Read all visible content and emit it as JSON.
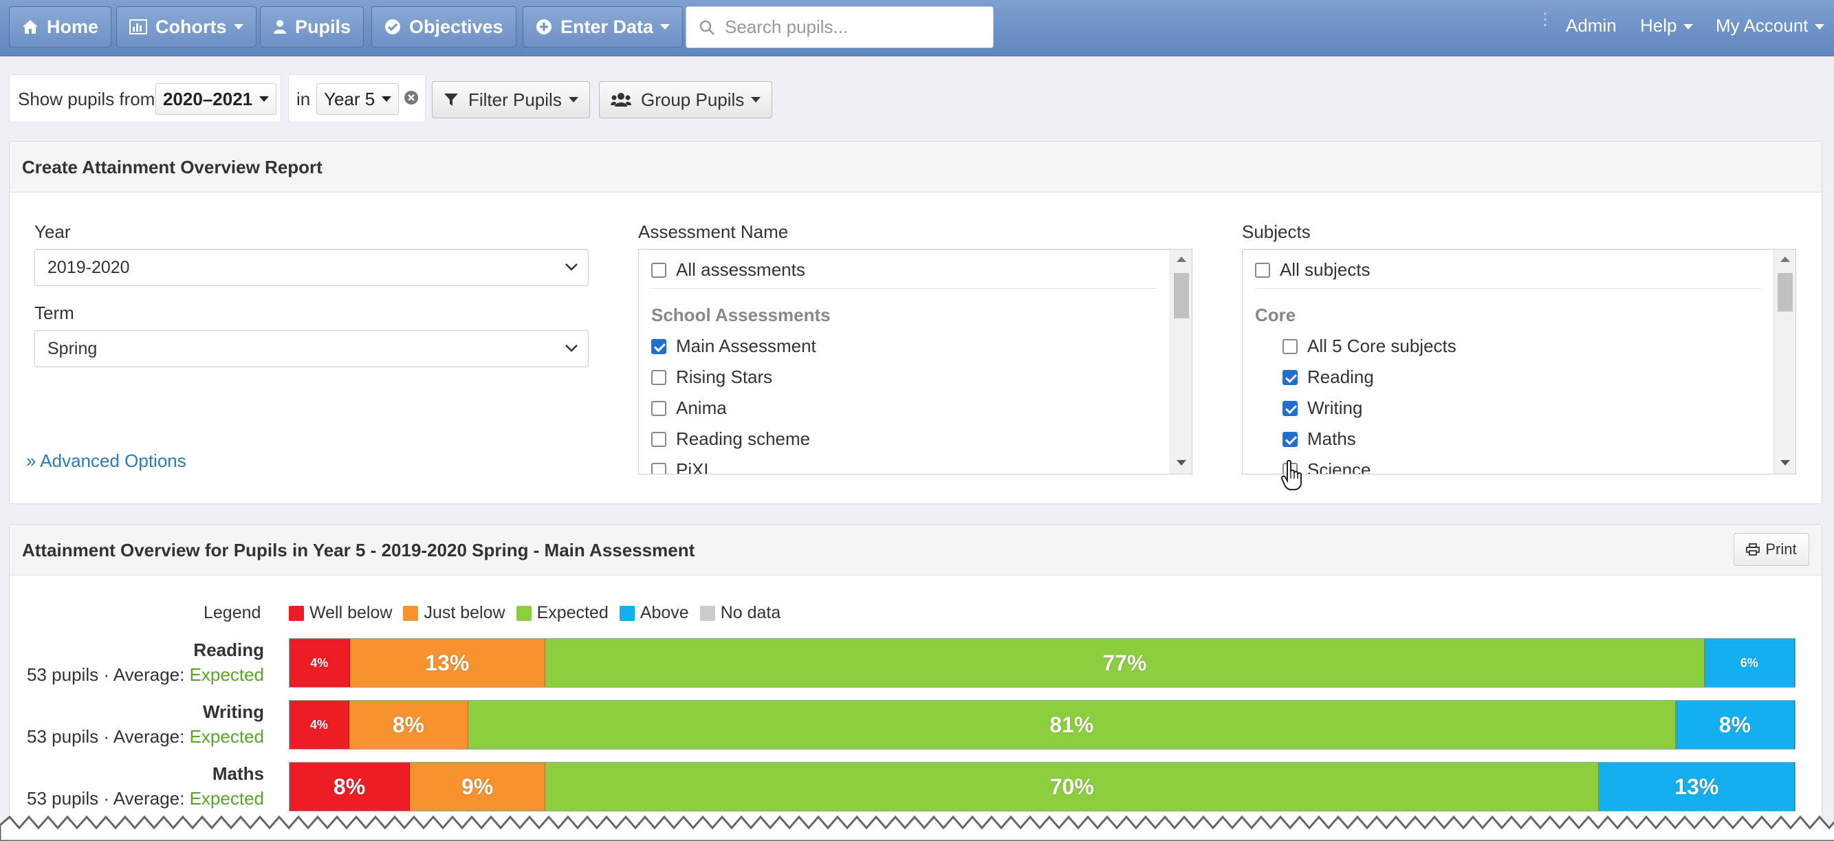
{
  "navbar": {
    "home": "Home",
    "cohorts": "Cohorts",
    "pupils": "Pupils",
    "objectives": "Objectives",
    "enter_data": "Enter Data",
    "search_placeholder": "Search pupils...",
    "admin": "Admin",
    "help": "Help",
    "my_account": "My Account"
  },
  "filters": {
    "show_from_label": "Show pupils from",
    "year_value": "2020–2021",
    "in_label": "in",
    "group_value": "Year 5",
    "filter_pupils": "Filter Pupils",
    "group_pupils": "Group Pupils"
  },
  "report_form": {
    "title": "Create Attainment Overview Report",
    "year_label": "Year",
    "year_value": "2019-2020",
    "term_label": "Term",
    "term_value": "Spring",
    "advanced_options": "Advanced Options",
    "assessment_label": "Assessment Name",
    "assessments": {
      "all": {
        "label": "All assessments",
        "checked": false
      },
      "group": "School Assessments",
      "items": [
        {
          "label": "Main Assessment",
          "checked": true
        },
        {
          "label": "Rising Stars",
          "checked": false
        },
        {
          "label": "Anima",
          "checked": false
        },
        {
          "label": "Reading scheme",
          "checked": false
        },
        {
          "label": "PiXL",
          "checked": false
        }
      ]
    },
    "subjects_label": "Subjects",
    "subjects": {
      "all": {
        "label": "All subjects",
        "checked": false
      },
      "group": "Core",
      "items": [
        {
          "label": "All 5 Core subjects",
          "checked": false
        },
        {
          "label": "Reading",
          "checked": true
        },
        {
          "label": "Writing",
          "checked": true
        },
        {
          "label": "Maths",
          "checked": true
        },
        {
          "label": "Science",
          "checked": false
        }
      ]
    }
  },
  "overview": {
    "title": "Attainment Overview for Pupils in Year 5 - 2019-2020 Spring - Main Assessment",
    "print": "Print",
    "legend_label": "Legend",
    "legend": [
      {
        "name": "Well below",
        "color": "#ee1c24"
      },
      {
        "name": "Just below",
        "color": "#f7932e"
      },
      {
        "name": "Expected",
        "color": "#8dce3e"
      },
      {
        "name": "Above",
        "color": "#13aff0"
      },
      {
        "name": "No data",
        "color": "#cccccc"
      }
    ],
    "rows": [
      {
        "subject": "Reading",
        "info": "53 pupils · Average: ",
        "average": "Expected"
      },
      {
        "subject": "Writing",
        "info": "53 pupils · Average: ",
        "average": "Expected"
      },
      {
        "subject": "Maths",
        "info": "53 pupils · Average: ",
        "average": "Expected"
      }
    ]
  },
  "chart_data": {
    "type": "bar",
    "stacked": true,
    "orientation": "horizontal",
    "categories": [
      "Reading",
      "Writing",
      "Maths"
    ],
    "series": [
      {
        "name": "Well below",
        "values": [
          4,
          4,
          8
        ],
        "labels": [
          "4%",
          "4%",
          "8%"
        ]
      },
      {
        "name": "Just below",
        "values": [
          13,
          8,
          9
        ],
        "labels": [
          "13%",
          "8%",
          "9%"
        ]
      },
      {
        "name": "Expected",
        "values": [
          77,
          81,
          70
        ],
        "labels": [
          "77%",
          "81%",
          "70%"
        ]
      },
      {
        "name": "Above",
        "values": [
          6,
          8,
          13
        ],
        "labels": [
          "6%",
          "8%",
          "13%"
        ]
      }
    ],
    "colors": [
      "#ee1c24",
      "#f7932e",
      "#8dce3e",
      "#13aff0"
    ],
    "unit": "%"
  }
}
